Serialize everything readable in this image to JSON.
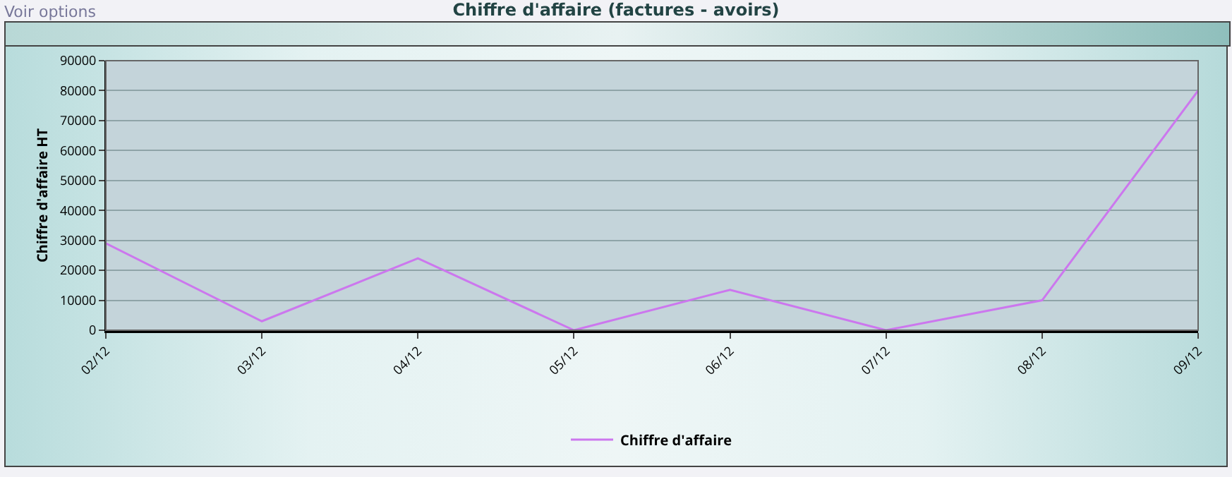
{
  "chart_data": {
    "type": "line",
    "title": "Chiffre d'affaire (factures - avoirs)",
    "ylabel": "Chiffre d'affaire HT",
    "annotations": [
      "Voir options"
    ],
    "categories": [
      "02/12",
      "03/12",
      "04/12",
      "05/12",
      "06/12",
      "07/12",
      "08/12",
      "09/12"
    ],
    "series": [
      {
        "name": "Chiffre d'affaire",
        "color": "#cc77ee",
        "values": [
          29000,
          3000,
          24000,
          0,
          13500,
          0,
          10000,
          80000
        ]
      }
    ],
    "ylim": [
      0,
      90000
    ],
    "yticks": [
      0,
      10000,
      20000,
      30000,
      40000,
      50000,
      60000,
      70000,
      80000,
      90000
    ],
    "grid": "y",
    "legend": "bottom"
  }
}
